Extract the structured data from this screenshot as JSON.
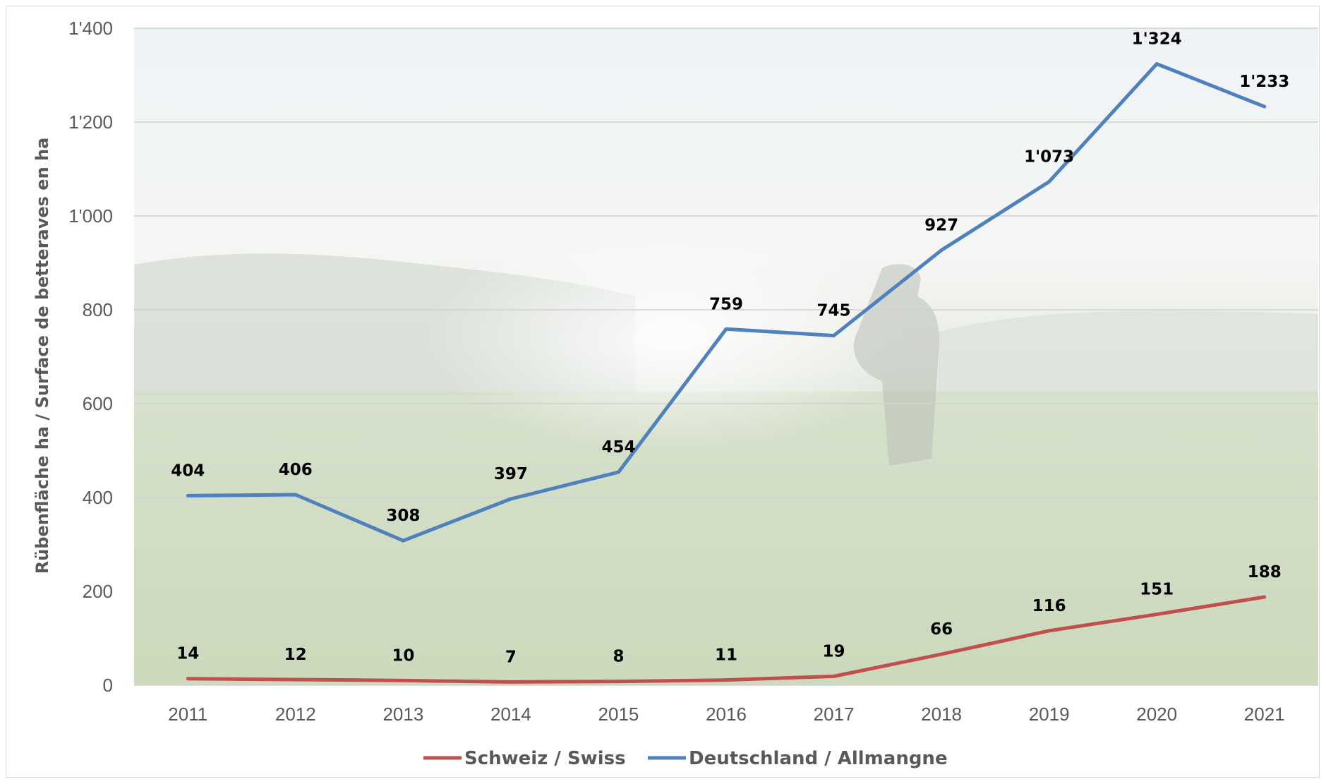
{
  "chart_data": {
    "type": "line",
    "title": "",
    "xlabel": "",
    "ylabel": "Rübenfläche ha / Surface de betteraves en ha",
    "categories": [
      "2011",
      "2012",
      "2013",
      "2014",
      "2015",
      "2016",
      "2017",
      "2018",
      "2019",
      "2020",
      "2021"
    ],
    "ylim": [
      0,
      1400
    ],
    "yticks": [
      0,
      200,
      400,
      600,
      800,
      1000,
      1200,
      1400
    ],
    "ytick_labels": [
      "0",
      "200",
      "400",
      "600",
      "800",
      "1'000",
      "1'200",
      "1'400"
    ],
    "grid": true,
    "legend_position": "bottom",
    "series": [
      {
        "name": "Schweiz / Swiss",
        "color": "#C0504D",
        "values": [
          14,
          12,
          10,
          7,
          8,
          11,
          19,
          66,
          116,
          151,
          188
        ],
        "labels": [
          "14",
          "12",
          "10",
          "7",
          "8",
          "11",
          "19",
          "66",
          "116",
          "151",
          "188"
        ]
      },
      {
        "name": "Deutschland / Allmangne",
        "color": "#4F81BD",
        "values": [
          404,
          406,
          308,
          397,
          454,
          759,
          745,
          927,
          1073,
          1324,
          1233
        ],
        "labels": [
          "404",
          "406",
          "308",
          "397",
          "454",
          "759",
          "745",
          "927",
          "1'073",
          "1'324",
          "1'233"
        ]
      }
    ]
  }
}
